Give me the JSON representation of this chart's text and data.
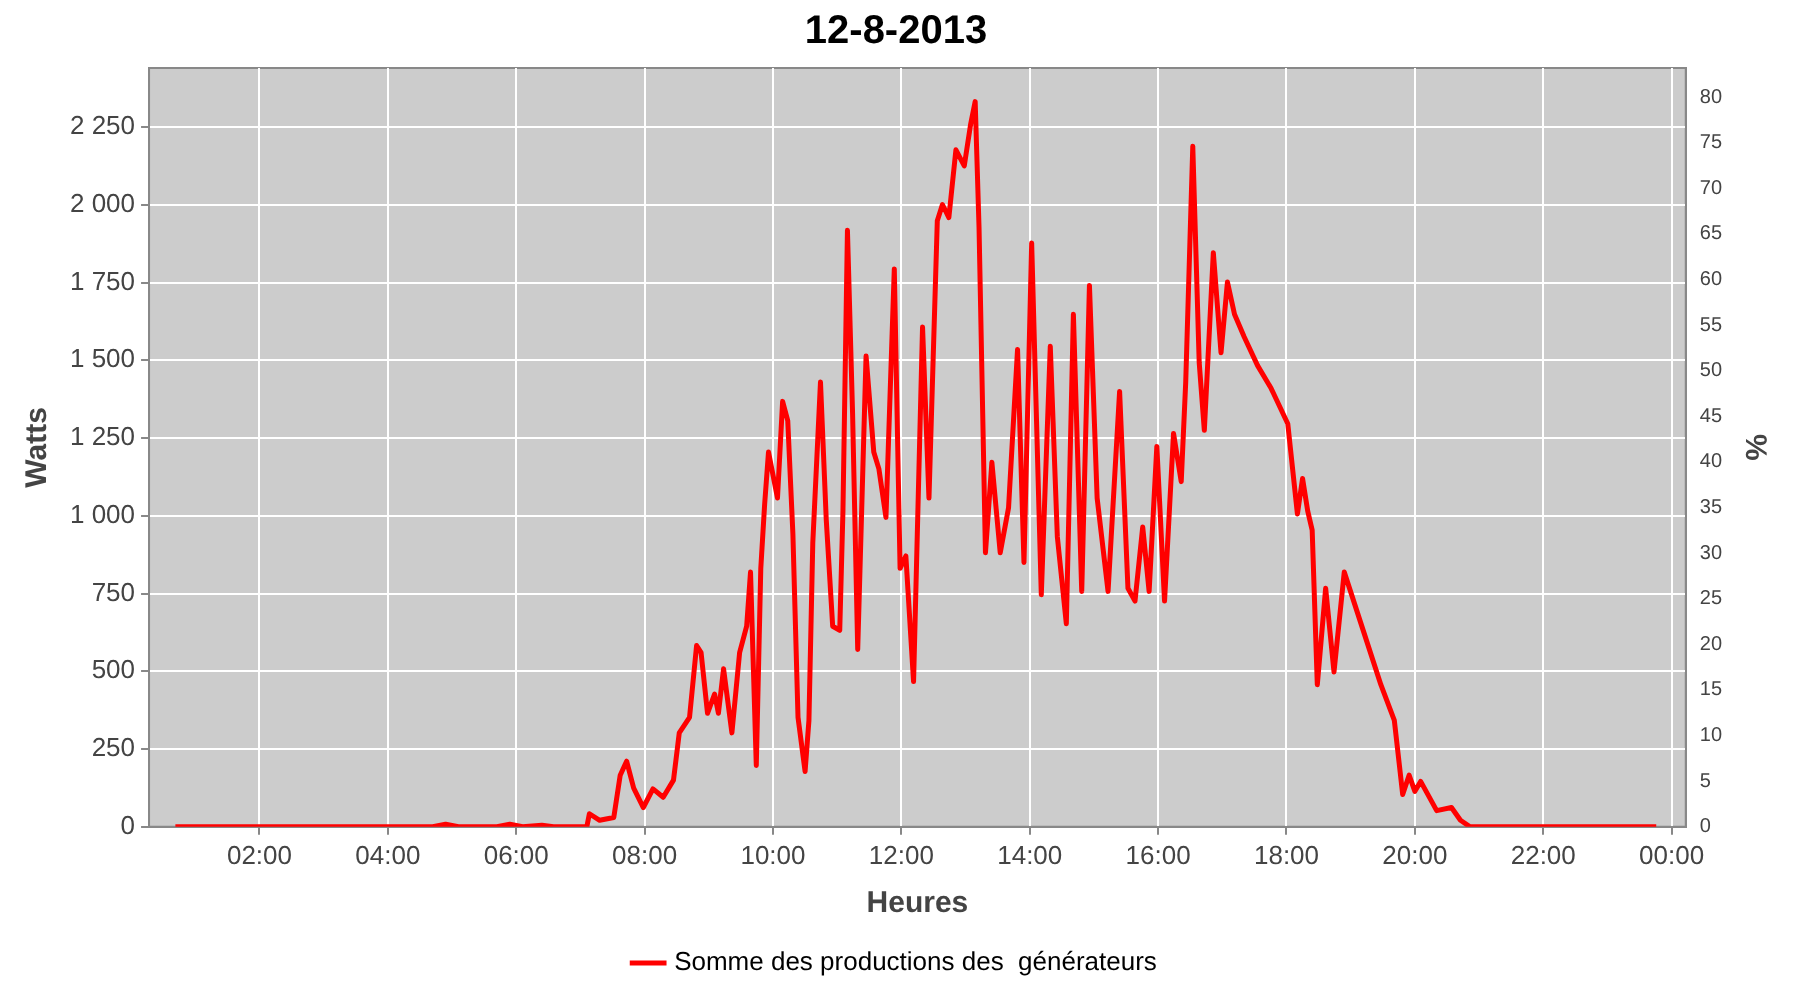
{
  "chart_data": {
    "type": "line",
    "title": "12-8-2013",
    "xlabel": "Heures",
    "ylabel": "Watts",
    "y2label": "%",
    "legend": "bottom",
    "grid": true,
    "marker": "none",
    "line_style": "solid",
    "xlim": [
      0.28,
      24.22
    ],
    "xticks": [
      {
        "value": 2,
        "label": "02:00"
      },
      {
        "value": 4,
        "label": "04:00"
      },
      {
        "value": 6,
        "label": "06:00"
      },
      {
        "value": 8,
        "label": "08:00"
      },
      {
        "value": 10,
        "label": "10:00"
      },
      {
        "value": 12,
        "label": "12:00"
      },
      {
        "value": 14,
        "label": "14:00"
      },
      {
        "value": 16,
        "label": "16:00"
      },
      {
        "value": 18,
        "label": "18:00"
      },
      {
        "value": 20,
        "label": "20:00"
      },
      {
        "value": 22,
        "label": "22:00"
      },
      {
        "value": 24,
        "label": "00:00"
      }
    ],
    "ylim": [
      0,
      2440
    ],
    "yticks": [
      0,
      250,
      500,
      750,
      {
        "value": 1000,
        "label": "1 000"
      },
      {
        "value": 1250,
        "label": "1 250"
      },
      {
        "value": 1500,
        "label": "1 500"
      },
      {
        "value": 1750,
        "label": "1 750"
      },
      {
        "value": 2000,
        "label": "2 000"
      },
      {
        "value": 2250,
        "label": "2 250"
      }
    ],
    "y2lim": [
      0,
      83.2
    ],
    "y2ticks": [
      0,
      5,
      10,
      15,
      20,
      25,
      30,
      35,
      40,
      45,
      50,
      55,
      60,
      65,
      70,
      75,
      80
    ],
    "series": [
      {
        "name": "Somme des productions des  générateurs",
        "color": "#ff0000",
        "x": [
          0.69,
          2.0,
          3.5,
          4.7,
          4.9,
          5.1,
          5.7,
          5.9,
          6.1,
          6.4,
          6.58,
          7.1,
          7.14,
          7.3,
          7.52,
          7.62,
          7.72,
          7.83,
          7.98,
          8.13,
          8.29,
          8.45,
          8.54,
          8.7,
          8.81,
          8.88,
          8.98,
          9.09,
          9.15,
          9.23,
          9.36,
          9.48,
          9.59,
          9.65,
          9.74,
          9.81,
          9.87,
          9.93,
          10.07,
          10.15,
          10.23,
          10.31,
          10.39,
          10.5,
          10.56,
          10.62,
          10.74,
          10.83,
          10.93,
          11.04,
          11.09,
          11.16,
          11.24,
          11.32,
          11.45,
          11.57,
          11.65,
          11.76,
          11.89,
          11.98,
          12.07,
          12.19,
          12.33,
          12.43,
          12.56,
          12.64,
          12.74,
          12.85,
          12.98,
          13.08,
          13.15,
          13.21,
          13.31,
          13.41,
          13.54,
          13.67,
          13.81,
          13.91,
          14.03,
          14.18,
          14.32,
          14.43,
          14.57,
          14.68,
          14.81,
          14.93,
          15.05,
          15.22,
          15.4,
          15.53,
          15.64,
          15.76,
          15.86,
          15.98,
          16.1,
          16.24,
          16.36,
          16.43,
          16.54,
          16.64,
          16.72,
          16.86,
          16.98,
          17.08,
          17.19,
          17.34,
          17.55,
          17.76,
          18.02,
          18.17,
          18.25,
          18.33,
          18.4,
          18.48,
          18.61,
          18.74,
          18.9,
          19.21,
          19.47,
          19.68,
          19.81,
          19.91,
          20.0,
          20.09,
          20.34,
          20.57,
          20.71,
          20.86,
          22.0,
          23.76
        ],
        "values": [
          0,
          0,
          0,
          0,
          8,
          0,
          0,
          8,
          0,
          5,
          0,
          0,
          42,
          21,
          30,
          166,
          211,
          124,
          62,
          122,
          95,
          150,
          302,
          352,
          583,
          560,
          365,
          427,
          365,
          508,
          302,
          560,
          645,
          819,
          197,
          831,
          1037,
          1205,
          1057,
          1368,
          1306,
          943,
          352,
          178,
          342,
          912,
          1430,
          987,
          645,
          632,
          1016,
          1918,
          1329,
          570,
          1514,
          1205,
          1151,
          995,
          1794,
          831,
          871,
          467,
          1607,
          1057,
          1949,
          2001,
          1959,
          2177,
          2125,
          2260,
          2332,
          1928,
          881,
          1172,
          881,
          1026,
          1535,
          850,
          1877,
          746,
          1545,
          933,
          653,
          1648,
          757,
          1741,
          1057,
          757,
          1400,
          767,
          726,
          964,
          757,
          1223,
          726,
          1265,
          1110,
          1430,
          2188,
          1493,
          1275,
          1846,
          1524,
          1752,
          1648,
          1576,
          1483,
          1410,
          1296,
          1006,
          1120,
          1016,
          954,
          457,
          767,
          498,
          819,
          622,
          457,
          342,
          104,
          166,
          114,
          146,
          52,
          62,
          21,
          0,
          0,
          0
        ]
      }
    ]
  }
}
